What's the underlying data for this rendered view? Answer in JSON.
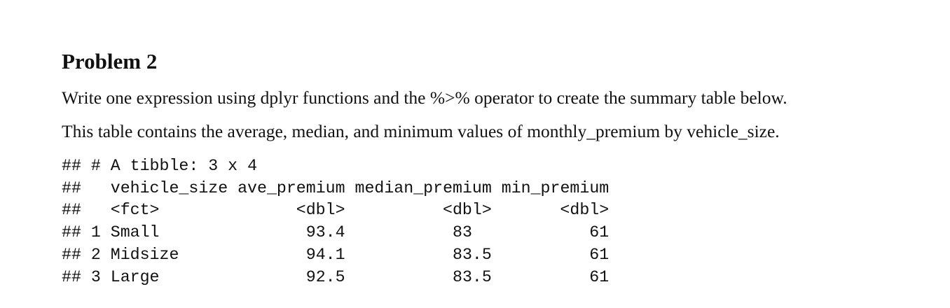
{
  "heading": "Problem 2",
  "paragraphs": [
    "Write one expression using dplyr functions and the %>% operator to create the summary table below.",
    "This table contains the average, median, and minimum values of monthly_premium by vehicle_size."
  ],
  "output": {
    "prefix": "##",
    "caption": "# A tibble: 3 x 4",
    "columns": [
      "vehicle_size",
      "ave_premium",
      "median_premium",
      "min_premium"
    ],
    "types": [
      "<fct>",
      "<dbl>",
      "<dbl>",
      "<dbl>"
    ],
    "rows": [
      [
        1,
        "Small",
        93.4,
        83,
        61
      ],
      [
        2,
        "Midsize",
        94.1,
        83.5,
        61
      ],
      [
        3,
        "Large",
        92.5,
        83.5,
        61
      ]
    ]
  }
}
